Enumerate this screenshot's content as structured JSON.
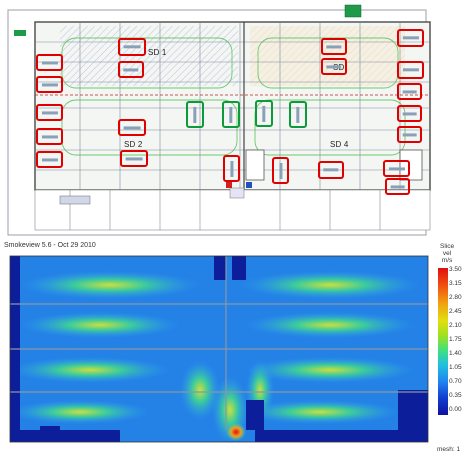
{
  "floor_plan": {
    "zone_labels": [
      {
        "text": "SD 1"
      },
      {
        "text": "SD"
      },
      {
        "text": "SD 2"
      },
      {
        "text": "SD 4"
      }
    ],
    "red_markers_count": 21,
    "green_markers_count": 4,
    "colors": {
      "red": "#e00000",
      "green": "#0c9a3a",
      "hatch": "#b8bcd8",
      "grid": "#7d8a9a"
    }
  },
  "contour_plot": {
    "title": "Smokeview 5.6 - Oct 29 2010",
    "colorbar_header": [
      "Slice",
      "vel",
      "m/s"
    ],
    "colorbar_values": [
      "3.50",
      "3.15",
      "2.80",
      "2.45",
      "2.10",
      "1.75",
      "1.40",
      "1.05",
      "0.70",
      "0.35",
      "0.00"
    ],
    "mesh_label": "mesh: 1"
  }
}
